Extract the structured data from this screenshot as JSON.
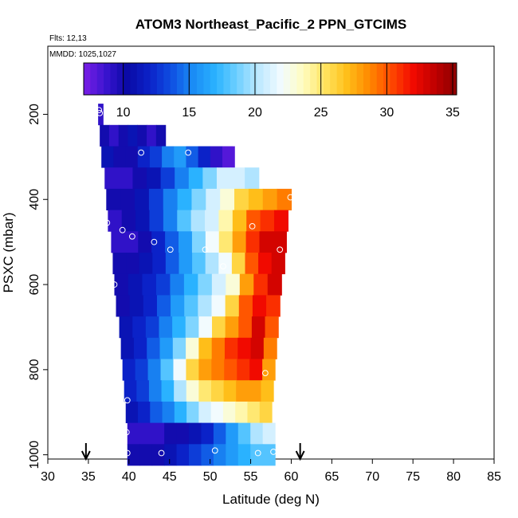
{
  "chart_data": {
    "type": "heatmap",
    "title": "ATOM3 Northeast_Pacific_2 PPN_GTCIMS",
    "flights_label": "Flts: 12,13",
    "dates_label": "MMDD: 1025,1027",
    "xlabel": "Latitude (deg N)",
    "ylabel": "PSXC (mbar)",
    "xlim": [
      30,
      85
    ],
    "ylim": [
      1010,
      40
    ],
    "x_ticks": [
      "30",
      "35",
      "40",
      "45",
      "50",
      "55",
      "60",
      "65",
      "70",
      "75",
      "80",
      "85"
    ],
    "y_ticks": [
      "200",
      "400",
      "600",
      "800",
      "1000"
    ],
    "colorbar": {
      "min": 7,
      "max": 35.3,
      "ticks": [
        "10",
        "15",
        "20",
        "25",
        "30",
        "35"
      ],
      "colors": [
        "#7b1fe6",
        "#3a14d0",
        "#0a0aa6",
        "#0b22c8",
        "#0f4fe2",
        "#1a8cf5",
        "#2ab2ff",
        "#6fd0ff",
        "#bfe9ff",
        "#f2fbff",
        "#fffcc0",
        "#ffe460",
        "#ffbf19",
        "#ff8a00",
        "#ff4a00",
        "#f20a00",
        "#c00000",
        "#8a0000"
      ]
    },
    "grid": false,
    "pressure_bins": [
      {
        "p": 200,
        "lat": [
          36.2,
          36.8
        ],
        "vals": [
          9
        ]
      },
      {
        "p": 250,
        "lat": [
          36.4,
          44.5
        ],
        "vals": [
          10,
          9,
          10,
          11,
          10,
          9,
          10
        ]
      },
      {
        "p": 300,
        "lat": [
          36.6,
          53.0
        ],
        "vals": [
          11,
          10,
          10,
          12,
          13,
          15,
          16,
          14,
          12,
          9,
          8
        ]
      },
      {
        "p": 350,
        "lat": [
          37.0,
          56.0
        ],
        "vals": [
          9,
          9,
          10,
          11,
          13,
          15,
          17,
          19,
          21,
          21,
          20
        ]
      },
      {
        "p": 400,
        "lat": [
          37.2,
          60.0
        ],
        "vals": [
          10,
          10,
          11,
          13,
          15,
          17,
          19,
          21,
          23,
          26,
          27,
          28,
          29
        ]
      },
      {
        "p": 450,
        "lat": [
          37.4,
          59.6
        ],
        "vals": [
          9,
          10,
          11,
          13,
          15,
          18,
          20,
          21,
          24,
          27,
          30,
          31,
          32
        ]
      },
      {
        "p": 500,
        "lat": [
          37.8,
          59.4
        ],
        "vals": [
          9,
          9,
          10,
          12,
          14,
          16,
          19,
          22,
          25,
          28,
          31,
          33,
          33
        ]
      },
      {
        "p": 550,
        "lat": [
          38.0,
          59.2
        ],
        "vals": [
          10,
          10,
          11,
          12,
          14,
          16,
          18,
          20,
          22,
          26,
          30,
          32,
          33
        ]
      },
      {
        "p": 600,
        "lat": [
          38.2,
          58.8
        ],
        "vals": [
          10,
          11,
          12,
          13,
          15,
          17,
          19,
          21,
          23,
          28,
          31,
          33
        ]
      },
      {
        "p": 650,
        "lat": [
          38.4,
          58.6
        ],
        "vals": [
          10,
          11,
          12,
          14,
          16,
          18,
          20,
          22,
          26,
          30,
          32,
          31
        ]
      },
      {
        "p": 700,
        "lat": [
          38.8,
          58.4
        ],
        "vals": [
          11,
          12,
          13,
          15,
          17,
          19,
          22,
          26,
          28,
          30,
          33,
          30
        ]
      },
      {
        "p": 750,
        "lat": [
          39.0,
          58.2
        ],
        "vals": [
          11,
          12,
          14,
          16,
          19,
          23,
          27,
          29,
          31,
          32,
          33,
          29
        ]
      },
      {
        "p": 800,
        "lat": [
          39.2,
          58.0
        ],
        "vals": [
          12,
          13,
          15,
          18,
          22,
          26,
          28,
          29,
          30,
          31,
          32,
          28
        ]
      },
      {
        "p": 850,
        "lat": [
          39.4,
          57.8
        ],
        "vals": [
          12,
          13,
          15,
          17,
          20,
          23,
          25,
          26,
          27,
          28,
          28,
          27
        ]
      },
      {
        "p": 900,
        "lat": [
          39.6,
          57.6
        ],
        "vals": [
          11,
          12,
          14,
          15,
          17,
          19,
          21,
          22,
          23,
          24,
          25,
          26
        ]
      },
      {
        "p": 950,
        "lat": [
          39.8,
          58.0
        ],
        "vals": [
          9,
          9,
          9,
          10,
          10,
          11,
          12,
          14,
          16,
          18,
          20,
          21
        ]
      },
      {
        "p": 1000,
        "lat": [
          39.8,
          58.0
        ],
        "vals": [
          10,
          10,
          10,
          11,
          12,
          13,
          14,
          15,
          16,
          17,
          18,
          18
        ]
      }
    ],
    "sample_points": [
      {
        "lat": 36.3,
        "p": 190
      },
      {
        "lat": 36.4,
        "p": 197
      },
      {
        "lat": 35.9,
        "p": 290
      },
      {
        "lat": 41.5,
        "p": 290
      },
      {
        "lat": 47.3,
        "p": 290
      },
      {
        "lat": 52.9,
        "p": 268
      },
      {
        "lat": 59.9,
        "p": 395
      },
      {
        "lat": 37.3,
        "p": 455
      },
      {
        "lat": 39.2,
        "p": 472
      },
      {
        "lat": 40.4,
        "p": 487
      },
      {
        "lat": 43.1,
        "p": 500
      },
      {
        "lat": 45.1,
        "p": 518
      },
      {
        "lat": 49.4,
        "p": 518
      },
      {
        "lat": 51.6,
        "p": 557
      },
      {
        "lat": 55.2,
        "p": 463
      },
      {
        "lat": 58.6,
        "p": 518
      },
      {
        "lat": 38.2,
        "p": 600
      },
      {
        "lat": 56.8,
        "p": 808
      },
      {
        "lat": 39.8,
        "p": 872
      },
      {
        "lat": 39.7,
        "p": 947
      },
      {
        "lat": 39.8,
        "p": 996
      },
      {
        "lat": 44.0,
        "p": 996
      },
      {
        "lat": 50.6,
        "p": 990
      },
      {
        "lat": 55.9,
        "p": 996
      },
      {
        "lat": 57.8,
        "p": 993
      }
    ],
    "arrows": [
      {
        "lat": 34.7
      },
      {
        "lat": 61.1
      }
    ]
  }
}
